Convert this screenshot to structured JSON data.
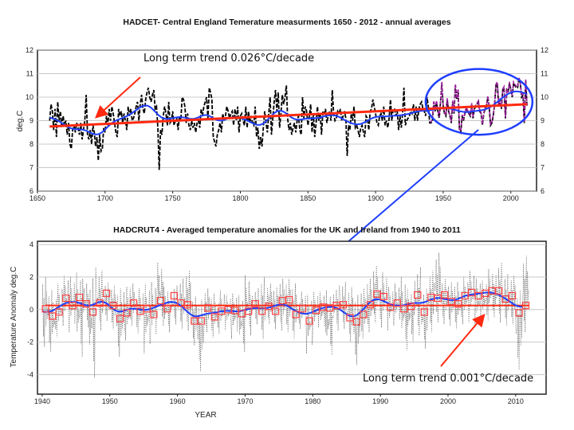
{
  "chart_data": [
    {
      "type": "line",
      "title": "HADCET- Central England Temerature measurments 1650 - 2012   - annual averages",
      "xlabel": "",
      "ylabel": "deg.C",
      "xlim": [
        1650,
        2019
      ],
      "ylim": [
        6,
        12
      ],
      "xticks": [
        1650,
        1700,
        1750,
        1800,
        1850,
        1900,
        1950,
        2000
      ],
      "yticks": [
        6,
        7,
        8,
        9,
        10,
        11,
        12
      ],
      "grid": true,
      "x_start": 1659,
      "series": [
        {
          "style": "black dashed",
          "color": "#000000",
          "values": [
            9.0,
            9.7,
            9.4,
            8.6,
            9.5,
            8.3,
            9.8,
            9.0,
            9.4,
            8.7,
            9.2,
            8.8,
            9.0,
            8.4,
            8.9,
            8.0,
            7.8,
            8.6,
            8.8,
            8.5,
            8.9,
            8.7,
            8.4,
            8.9,
            8.2,
            8.6,
            9.0,
            10.1,
            8.4,
            8.2,
            8.6,
            8.0,
            8.8,
            8.5,
            7.9,
            8.3,
            7.3,
            8.4,
            7.7,
            7.8,
            8.7,
            8.5,
            9.2,
            8.8,
            9.5,
            9.0,
            9.6,
            9.3,
            8.9,
            8.5,
            8.3,
            9.5,
            9.2,
            9.4,
            8.9,
            9.3,
            9.0,
            8.6,
            9.6,
            9.2,
            9.5,
            9.0,
            9.1,
            9.3,
            9.6,
            9.8,
            9.0,
            9.7,
            10.1,
            9.5,
            9.3,
            9.9,
            10.2,
            10.4,
            10.0,
            9.8,
            10.1,
            10.3,
            9.5,
            9.6,
            8.7,
            6.9,
            8.6,
            8.4,
            9.2,
            9.6,
            9.3,
            8.8,
            9.8,
            8.9,
            9.0,
            9.4,
            8.8,
            9.0,
            9.1,
            8.6,
            9.2,
            9.0,
            10.0,
            9.9,
            9.6,
            8.9,
            9.3,
            8.8,
            8.6,
            9.0,
            8.7,
            8.9,
            8.5,
            8.9,
            9.0,
            8.7,
            9.5,
            9.2,
            9.6,
            9.8,
            10.0,
            9.1,
            10.4,
            10.2,
            9.9,
            8.3,
            8.1,
            7.9,
            8.4,
            8.6,
            8.9,
            8.5,
            9.3,
            9.0,
            9.2,
            9.6,
            9.4,
            9.1,
            9.3,
            9.4,
            8.8,
            9.5,
            9.0,
            9.6,
            8.5,
            9.2,
            9.3,
            9.0,
            8.8,
            9.6,
            8.7,
            9.4,
            8.9,
            9.2,
            8.9,
            8.8,
            9.6,
            8.3,
            8.7,
            7.8,
            8.3,
            7.9,
            8.7,
            9.4,
            8.9,
            8.5,
            9.3,
            10.0,
            8.4,
            9.1,
            9.8,
            10.3,
            9.4,
            10.2,
            8.7,
            9.3,
            10.1,
            9.7,
            10.0,
            10.5,
            9.1,
            8.6,
            8.9,
            8.4,
            8.7,
            8.9,
            8.5,
            9.0,
            9.2,
            8.6,
            8.4,
            10.0,
            9.1,
            9.6,
            9.4,
            8.8,
            9.2,
            9.7,
            8.5,
            9.3,
            8.3,
            8.9,
            9.6,
            9.0,
            9.3,
            8.4,
            9.4,
            9.3,
            9.5,
            8.9,
            9.2,
            9.4,
            9.0,
            10.3,
            9.3,
            9.0,
            9.1,
            9.4,
            9.3,
            9.5,
            9.0,
            9.2,
            9.4,
            9.1,
            7.5,
            8.8,
            8.6,
            9.3,
            9.0,
            9.6,
            8.7,
            8.8,
            8.6,
            8.3,
            8.7,
            8.8,
            8.5,
            8.3,
            9.2,
            9.1,
            8.6,
            9.4,
            9.5,
            9.9,
            9.6,
            9.3,
            8.9,
            8.8,
            9.2,
            9.3,
            9.0,
            9.6,
            8.8,
            9.0,
            8.7,
            9.1,
            9.9,
            9.0,
            9.5,
            9.5,
            9.2,
            9.4,
            8.6,
            9.2,
            8.7,
            9.3,
            10.4,
            8.8,
            9.0,
            9.1,
            9.2,
            9.4,
            9.3,
            9.7,
            9.0,
            9.6,
            9.0,
            9.5,
            9.7,
            9.8,
            9.5,
            9.4,
            9.2,
            10.0,
            9.6,
            8.9,
            8.9,
            9.0,
            9.8,
            9.4,
            9.8,
            9.4,
            9.1,
            9.8,
            10.6,
            9.6,
            9.3,
            9.2,
            9.9,
            9.4,
            9.2,
            8.9,
            9.8,
            9.3,
            10.5,
            9.9,
            10.3,
            8.6,
            8.5,
            9.2,
            9.0,
            9.3,
            9.5,
            9.4,
            9.3,
            9.2,
            9.7,
            9.1,
            9.5,
            9.6,
            9.7,
            9.8,
            9.4,
            9.3,
            8.8,
            9.3,
            9.5,
            9.6,
            10.0,
            9.6,
            8.8,
            8.9,
            9.2,
            9.7,
            10.5,
            10.6,
            9.6,
            9.9,
            9.5,
            10.3,
            10.4,
            9.1,
            10.3,
            10.2,
            10.6,
            10.3,
            10.0,
            10.6,
            10.5,
            10.4,
            10.4,
            10.8,
            10.6,
            10.0,
            10.1,
            8.9,
            10.7,
            9.6
          ]
        },
        {
          "style": "blue smoothed",
          "color": "#1f3fff"
        },
        {
          "style": "purple dashed overlay",
          "color": "#a020a0",
          "years": [
            1940,
            2012
          ]
        }
      ],
      "trend_line": {
        "color": "#ff2a10",
        "from": [
          1659,
          8.75
        ],
        "to": [
          2012,
          9.7
        ]
      },
      "annotation": "Long term trend 0.026°C/decade",
      "annotation_color": "#ff2a10",
      "highlight_ellipse": {
        "color": "#1f3fff",
        "years": [
          1937,
          2016
        ],
        "range": [
          8.4,
          11.2
        ]
      }
    },
    {
      "type": "line",
      "title": "HADCRUT4 - Averaged temperature anomalies for the UK and Ireland from 1940 to 2011",
      "xlabel": "YEAR",
      "ylabel": "Temperature Anomaly deg.C",
      "xlim": [
        1939.3,
        2014.5
      ],
      "ylim": [
        -5.2,
        4.2
      ],
      "xticks": [
        1940,
        1950,
        1960,
        1970,
        1980,
        1990,
        2000,
        2010
      ],
      "yticks": [
        -4,
        -2,
        0,
        2,
        4
      ],
      "grid": true,
      "x_start": 1940,
      "annual_means": {
        "color": "#ff4040",
        "marker": "square",
        "values": [
          0.05,
          -0.4,
          -0.15,
          0.7,
          0.25,
          0.75,
          0.35,
          -0.15,
          0.4,
          1.0,
          0.25,
          -0.55,
          -0.2,
          0.4,
          -0.1,
          0.05,
          -0.3,
          0.55,
          0.05,
          0.85,
          0.4,
          0.3,
          -0.7,
          -0.7,
          0.1,
          -0.45,
          -0.1,
          0.0,
          -0.05,
          -0.25,
          -0.1,
          0.35,
          -0.1,
          0.2,
          -0.1,
          0.55,
          0.6,
          -0.3,
          0.05,
          -0.7,
          -0.05,
          0.15,
          0.1,
          0.25,
          0.3,
          -0.5,
          -0.75,
          -0.3,
          0.3,
          0.95,
          0.8,
          0.15,
          0.4,
          0.05,
          0.2,
          0.9,
          -0.15,
          0.75,
          0.7,
          0.9,
          0.5,
          0.35,
          0.85,
          1.05,
          0.85,
          1.0,
          1.15,
          1.15,
          0.65,
          0.85,
          -0.2,
          0.25
        ]
      },
      "monthly_range": {
        "color": "#555555",
        "style": "dotted",
        "high": [
          2.0,
          1.2,
          1.6,
          2.1,
          2.0,
          2.3,
          1.9,
          2.6,
          2.4,
          1.7,
          1.5,
          1.3,
          1.4,
          1.6,
          1.3,
          1.6,
          1.7,
          2.9,
          1.4,
          1.5,
          1.9,
          2.4,
          0.8,
          0.6,
          1.3,
          1.0,
          1.2,
          0.9,
          1.0,
          0.9,
          2.1,
          1.3,
          2.0,
          1.6,
          1.4,
          1.9,
          1.9,
          1.6,
          1.1,
          0.9,
          1.1,
          1.1,
          1.2,
          1.5,
          1.7,
          1.4,
          0.9,
          1.3,
          1.9,
          2.7,
          2.3,
          1.4,
          1.6,
          2.0,
          1.3,
          2.6,
          1.3,
          2.4,
          3.5,
          1.9,
          1.7,
          1.7,
          2.0,
          2.4,
          1.9,
          1.8,
          2.5,
          2.9,
          2.2,
          2.1,
          1.2,
          3.3
        ],
        "low": [
          -2.3,
          -2.6,
          -1.7,
          -1.0,
          -1.4,
          -2.9,
          -1.1,
          -4.2,
          -1.3,
          -0.7,
          -1.2,
          -2.9,
          -1.9,
          -1.0,
          -1.5,
          -2.7,
          -2.1,
          -1.0,
          -1.4,
          -0.9,
          -1.2,
          -1.3,
          -2.2,
          -3.8,
          -1.4,
          -1.7,
          -1.5,
          -1.3,
          -1.8,
          -2.6,
          -1.6,
          -0.9,
          -1.8,
          -0.9,
          -1.2,
          -1.3,
          -1.4,
          -1.8,
          -1.2,
          -2.7,
          -1.5,
          -1.4,
          -2.8,
          -1.3,
          -1.2,
          -2.0,
          -3.4,
          -1.8,
          -1.4,
          -0.8,
          -1.1,
          -1.3,
          -1.0,
          -2.5,
          -2.0,
          -1.6,
          -2.4,
          -1.4,
          -0.8,
          -0.9,
          -1.0,
          -1.2,
          -0.9,
          -0.8,
          -1.1,
          -0.7,
          -0.5,
          -0.8,
          -1.0,
          -0.9,
          -3.7,
          -1.4
        ]
      },
      "smoothed": {
        "color": "#1f3fff"
      },
      "trend_line": {
        "color": "#ff2a10",
        "value": 0.25
      },
      "annotation": "Long term trend 0.001°C/decade",
      "annotation_color": "#ff2a10"
    }
  ]
}
